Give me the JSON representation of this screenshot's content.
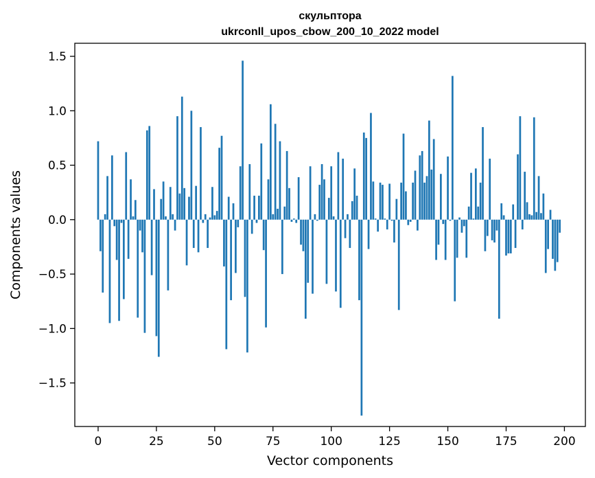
{
  "chart_data": {
    "type": "bar",
    "title_line1": "скульптора",
    "title_line2": "ukrconll_upos_cbow_200_10_2022 model",
    "xlabel": "Vector components",
    "ylabel": "Components values",
    "xlim": [
      -10,
      209
    ],
    "ylim": [
      -1.9,
      1.62
    ],
    "x_ticks": [
      0,
      25,
      50,
      75,
      100,
      125,
      150,
      175,
      200
    ],
    "x_tick_labels": [
      "0",
      "25",
      "50",
      "75",
      "100",
      "125",
      "150",
      "175",
      "200"
    ],
    "y_ticks": [
      1.5,
      1.0,
      0.5,
      0.0,
      -0.5,
      -1.0,
      -1.5
    ],
    "y_tick_labels": [
      "1.5",
      "1.0",
      "0.5",
      "0.0",
      "−0.5",
      "−1.0",
      "−1.5"
    ],
    "bar_color": "#1f77b4",
    "values": [
      0.72,
      -0.29,
      -0.67,
      0.05,
      0.4,
      -0.95,
      0.59,
      -0.06,
      -0.37,
      -0.93,
      -0.03,
      -0.73,
      0.62,
      -0.36,
      0.37,
      0.03,
      0.18,
      -0.9,
      -0.1,
      -0.3,
      -1.04,
      0.82,
      0.86,
      -0.51,
      0.28,
      -1.07,
      -1.26,
      0.19,
      0.35,
      0.03,
      -0.65,
      0.3,
      0.05,
      -0.1,
      0.95,
      0.24,
      1.13,
      0.29,
      -0.42,
      0.21,
      1.0,
      -0.26,
      0.31,
      -0.3,
      0.85,
      -0.03,
      0.05,
      -0.26,
      0.02,
      0.3,
      0.04,
      0.08,
      0.66,
      0.77,
      -0.43,
      -1.19,
      0.21,
      -0.74,
      0.15,
      -0.49,
      -0.07,
      0.49,
      1.46,
      -0.71,
      -1.22,
      0.51,
      -0.13,
      0.22,
      -0.03,
      0.22,
      0.7,
      -0.28,
      -0.99,
      0.37,
      1.06,
      0.05,
      0.88,
      0.1,
      0.72,
      -0.5,
      0.12,
      0.63,
      0.29,
      -0.02,
      0.01,
      -0.03,
      0.39,
      -0.23,
      -0.29,
      -0.91,
      -0.58,
      0.49,
      -0.68,
      0.05,
      -0.01,
      0.32,
      0.51,
      0.37,
      -0.59,
      0.2,
      0.49,
      0.03,
      -0.66,
      0.62,
      -0.81,
      0.56,
      -0.17,
      0.05,
      -0.26,
      0.17,
      0.47,
      0.22,
      -0.74,
      -1.8,
      0.8,
      0.75,
      -0.27,
      0.98,
      0.35,
      0.01,
      -0.11,
      0.34,
      0.32,
      0.01,
      -0.09,
      0.33,
      -0.01,
      -0.21,
      0.19,
      -0.83,
      0.34,
      0.79,
      0.26,
      -0.05,
      -0.02,
      0.34,
      0.45,
      -0.1,
      0.59,
      0.63,
      0.34,
      0.4,
      0.91,
      0.46,
      0.74,
      -0.37,
      -0.23,
      0.42,
      -0.04,
      -0.37,
      0.58,
      -0.01,
      1.32,
      -0.75,
      -0.35,
      0.02,
      -0.12,
      -0.06,
      -0.35,
      0.12,
      0.43,
      0.01,
      0.47,
      0.12,
      0.34,
      0.85,
      -0.29,
      -0.15,
      0.56,
      -0.19,
      -0.21,
      -0.1,
      -0.91,
      0.15,
      0.04,
      -0.33,
      -0.31,
      -0.31,
      0.14,
      -0.26,
      0.6,
      0.95,
      -0.09,
      0.44,
      0.16,
      0.05,
      0.04,
      0.94,
      0.07,
      0.4,
      0.06,
      0.24,
      -0.49,
      -0.27,
      0.09,
      -0.36,
      -0.47,
      -0.39,
      -0.12,
      0.0
    ]
  }
}
